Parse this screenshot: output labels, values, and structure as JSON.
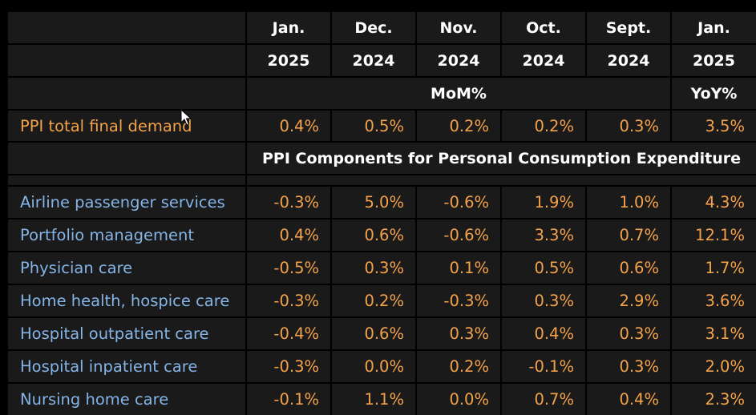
{
  "header": {
    "months": [
      "Jan.",
      "Dec.",
      "Nov.",
      "Oct.",
      "Sept.",
      "Jan."
    ],
    "years": [
      "2025",
      "2024",
      "2024",
      "2024",
      "2024",
      "2025"
    ],
    "mom_label": "MoM%",
    "yoy_label": "YoY%"
  },
  "total": {
    "label": "PPI total final demand",
    "values": [
      "0.4%",
      "0.5%",
      "0.2%",
      "0.2%",
      "0.3%",
      "3.5%"
    ]
  },
  "components_title": "PPI Components for Personal Consumption Expenditure",
  "rows": [
    {
      "label": "Airline passenger services",
      "values": [
        "-0.3%",
        "5.0%",
        "-0.6%",
        "1.9%",
        "1.0%",
        "4.3%"
      ]
    },
    {
      "label": "Portfolio management",
      "values": [
        "0.4%",
        "0.6%",
        "-0.6%",
        "3.3%",
        "0.7%",
        "12.1%"
      ]
    },
    {
      "label": "Physician care",
      "values": [
        "-0.5%",
        "0.3%",
        "0.1%",
        "0.5%",
        "0.6%",
        "1.7%"
      ]
    },
    {
      "label": "Home health, hospice care",
      "values": [
        "-0.3%",
        "0.2%",
        "-0.3%",
        "0.3%",
        "2.9%",
        "3.6%"
      ]
    },
    {
      "label": "Hospital outpatient care",
      "values": [
        "-0.4%",
        "0.6%",
        "0.3%",
        "0.4%",
        "0.3%",
        "3.1%"
      ]
    },
    {
      "label": "Hospital inpatient care",
      "values": [
        "-0.3%",
        "0.0%",
        "0.2%",
        "-0.1%",
        "0.3%",
        "2.0%"
      ]
    },
    {
      "label": "Nursing home care",
      "values": [
        "-0.1%",
        "1.1%",
        "0.0%",
        "0.7%",
        "0.4%",
        "2.3%"
      ]
    }
  ],
  "colors": {
    "background": "#000000",
    "cell": "#1a1a1a",
    "header_text": "#ffffff",
    "value_text": "#f4a24a",
    "component_label_text": "#85b4e6"
  }
}
